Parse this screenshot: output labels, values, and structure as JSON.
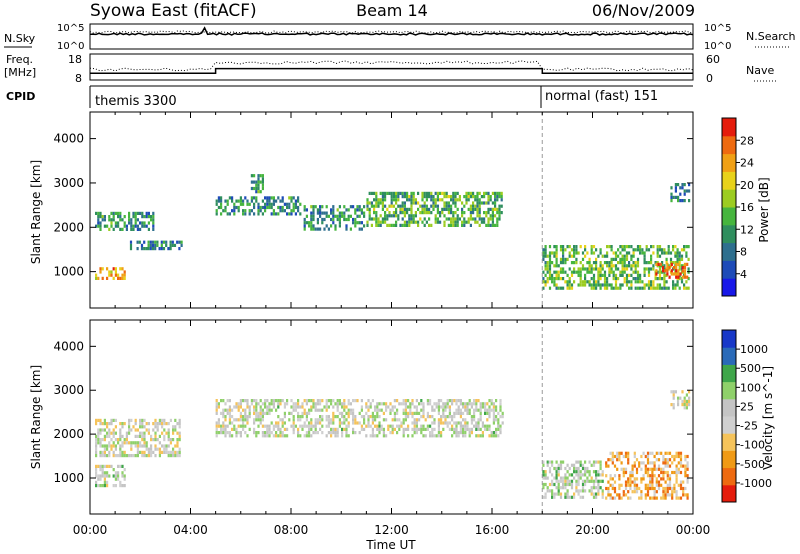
{
  "header": {
    "station": "Syowa East (fitACF)",
    "beam": "Beam 14",
    "date": "06/Nov/2009"
  },
  "nsky_panel": {
    "left_label": "N.Sky",
    "right_label": "N.Search",
    "left_ticks": [
      "10^5",
      "10^0"
    ],
    "right_ticks": [
      "10^5",
      "10^0"
    ]
  },
  "freq_panel": {
    "left_label_line1": "Freq.",
    "left_label_line2": "[MHz]",
    "right_label": "Nave",
    "left_ticks": [
      "18",
      "8"
    ],
    "right_ticks": [
      "60",
      "0"
    ],
    "freq_steps_utc": [
      {
        "start": 0.0,
        "end": 5.0,
        "freq_mhz": 10.6
      },
      {
        "start": 5.0,
        "end": 18.0,
        "freq_mhz": 12.4
      },
      {
        "start": 18.0,
        "end": 24.0,
        "freq_mhz": 10.6
      }
    ]
  },
  "cpid": {
    "label": "CPID",
    "modes": [
      {
        "name": "themis 3300",
        "start": 0.0,
        "end": 18.0
      },
      {
        "name": "normal (fast) 151",
        "start": 18.0,
        "end": 24.0
      }
    ]
  },
  "chart_data": [
    {
      "type": "heatmap",
      "name": "power",
      "xlabel": "Time UT",
      "ylabel": "Slant Range [km]",
      "xlim": [
        0,
        24
      ],
      "ylim": [
        180,
        4600
      ],
      "x_ticks": [
        "00:00",
        "04:00",
        "08:00",
        "12:00",
        "16:00",
        "20:00",
        "00:00"
      ],
      "y_ticks": [
        "1000",
        "2000",
        "3000",
        "4000"
      ],
      "colorbar_label": "Power [dB]",
      "colorbar_ticks": [
        "28",
        "24",
        "20",
        "16",
        "12",
        "8",
        "4"
      ],
      "colorbar_colors": [
        "#1818e8",
        "#1e4bb8",
        "#2e6f8e",
        "#2f8e5e",
        "#46b53e",
        "#9ccc21",
        "#e8d21a",
        "#f0a015",
        "#ee6a10",
        "#e51c0c"
      ],
      "echo_regions": [
        {
          "t0": 0.2,
          "t1": 2.6,
          "r0": 1850,
          "r1": 2350,
          "power": 10
        },
        {
          "t0": 0.2,
          "t1": 1.5,
          "r0": 750,
          "r1": 1100,
          "power": 22
        },
        {
          "t0": 1.5,
          "t1": 3.7,
          "r0": 1450,
          "r1": 1700,
          "power": 9
        },
        {
          "t0": 5.0,
          "t1": 8.5,
          "r0": 2200,
          "r1": 2700,
          "power": 10
        },
        {
          "t0": 6.4,
          "t1": 7.0,
          "r0": 2700,
          "r1": 3200,
          "power": 11
        },
        {
          "t0": 8.5,
          "t1": 11.0,
          "r0": 1900,
          "r1": 2500,
          "power": 10
        },
        {
          "t0": 11.0,
          "t1": 16.5,
          "r0": 2000,
          "r1": 2800,
          "power": 13
        },
        {
          "t0": 18.0,
          "t1": 23.9,
          "r0": 550,
          "r1": 1600,
          "power": 14
        },
        {
          "t0": 22.5,
          "t1": 23.9,
          "r0": 800,
          "r1": 1200,
          "power": 26
        },
        {
          "t0": 23.1,
          "t1": 23.9,
          "r0": 2500,
          "r1": 3000,
          "power": 8
        }
      ]
    },
    {
      "type": "heatmap",
      "name": "velocity",
      "xlabel": "Time UT",
      "ylabel": "Slant Range [km]",
      "xlim": [
        0,
        24
      ],
      "ylim": [
        180,
        4600
      ],
      "x_ticks": [
        "00:00",
        "04:00",
        "08:00",
        "12:00",
        "16:00",
        "20:00",
        "00:00"
      ],
      "y_ticks": [
        "1000",
        "2000",
        "3000",
        "4000"
      ],
      "colorbar_label": "Velocity [m s^-1]",
      "colorbar_ticks": [
        "1000",
        "500",
        "100",
        "25",
        "-25",
        "-100",
        "-500",
        "-1000"
      ],
      "colorbar_colors": [
        "#e51c0c",
        "#ee6a10",
        "#f09a15",
        "#f5c35a",
        "#cfcfcf",
        "#c4c4c4",
        "#8fd06a",
        "#3fa64a",
        "#2a6ab8",
        "#1838c8"
      ],
      "echo_regions": [
        {
          "t0": 0.2,
          "t1": 3.7,
          "r0": 1450,
          "r1": 2350,
          "velocity": 0
        },
        {
          "t0": 0.2,
          "t1": 1.5,
          "r0": 750,
          "r1": 1300,
          "velocity": 80
        },
        {
          "t0": 5.0,
          "t1": 16.5,
          "r0": 1900,
          "r1": 2800,
          "velocity": 60
        },
        {
          "t0": 18.0,
          "t1": 20.5,
          "r0": 500,
          "r1": 1400,
          "velocity": 120
        },
        {
          "t0": 20.5,
          "t1": 23.9,
          "r0": 500,
          "r1": 1600,
          "velocity": -400
        },
        {
          "t0": 23.1,
          "t1": 23.9,
          "r0": 2500,
          "r1": 3000,
          "velocity": 0
        }
      ]
    }
  ]
}
